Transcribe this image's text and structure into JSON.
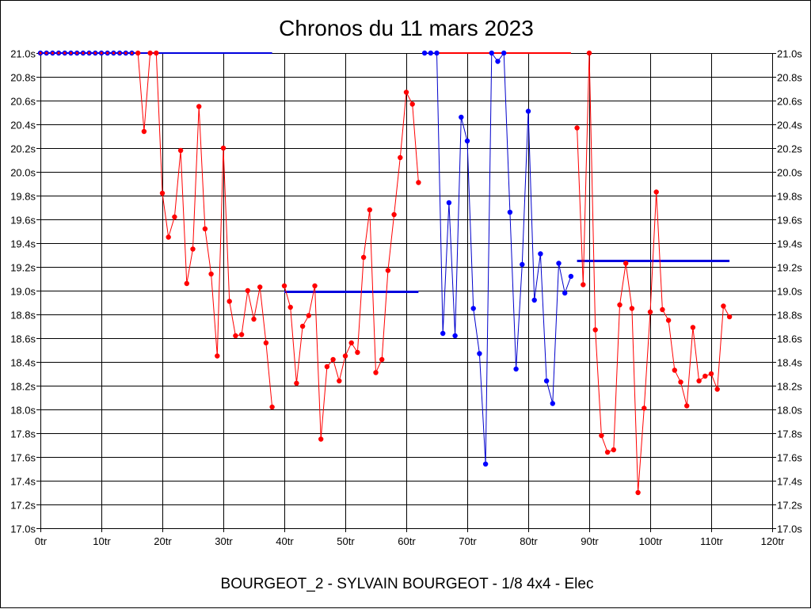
{
  "colors": {
    "background": "#ffffff",
    "grid": "#000000",
    "red_series": "#ff0000",
    "blue_series": "#0000cc",
    "blue_marker": "#0000ff",
    "blue_ref_line": "#0000dd",
    "red_ref_line": "#ff0000"
  },
  "chart_data": {
    "type": "line",
    "title": "Chronos du 11 mars 2023",
    "subtitle": "BOURGEOT_2 - SYLVAIN BOURGEOT - 1/8 4x4 - Elec",
    "xlabel": "",
    "ylabel": "",
    "xlim": [
      0,
      120
    ],
    "ylim": [
      17.0,
      21.0
    ],
    "grid": true,
    "legend": "none",
    "x_ticks": [
      0,
      10,
      20,
      30,
      40,
      50,
      60,
      70,
      80,
      90,
      100,
      110,
      120
    ],
    "x_tick_labels": [
      "0tr",
      "10tr",
      "20tr",
      "30tr",
      "40tr",
      "50tr",
      "60tr",
      "70tr",
      "80tr",
      "90tr",
      "100tr",
      "110tr",
      "120tr"
    ],
    "y_ticks": [
      17.0,
      17.2,
      17.4,
      17.6,
      17.8,
      18.0,
      18.2,
      18.4,
      18.6,
      18.8,
      19.0,
      19.2,
      19.4,
      19.6,
      19.8,
      20.0,
      20.2,
      20.4,
      20.6,
      20.8,
      21.0
    ],
    "y_tick_labels": [
      "17.0s",
      "17.2s",
      "17.4s",
      "17.6s",
      "17.8s",
      "18.0s",
      "18.2s",
      "18.4s",
      "18.6s",
      "18.8s",
      "19.0s",
      "19.2s",
      "19.4s",
      "19.6s",
      "19.8s",
      "20.0s",
      "20.2s",
      "20.4s",
      "20.6s",
      "20.8s",
      "21.0s"
    ],
    "series": [
      {
        "color": "#ff0000",
        "marker_color": "#ff0000",
        "x": [
          16,
          17,
          18,
          19,
          20,
          21,
          22,
          23,
          24,
          25,
          26,
          27,
          28,
          29,
          30,
          31,
          32,
          33,
          34,
          35,
          36,
          37,
          38
        ],
        "values": [
          21.0,
          20.34,
          21.0,
          21.0,
          19.82,
          19.45,
          19.62,
          20.18,
          19.06,
          19.35,
          20.55,
          19.52,
          19.14,
          18.45,
          20.2,
          18.91,
          18.62,
          18.63,
          19.0,
          18.76,
          19.03,
          18.56,
          18.02
        ]
      },
      {
        "color": "#0000cc",
        "marker_color": "#0000ff",
        "x": [
          0,
          1,
          2,
          3,
          4,
          5,
          6,
          7,
          8,
          9,
          10,
          11,
          12,
          13,
          14,
          15
        ],
        "values": [
          21.0,
          21.0,
          21.0,
          21.0,
          21.0,
          21.0,
          21.0,
          21.0,
          21.0,
          21.0,
          21.0,
          21.0,
          21.0,
          21.0,
          21.0,
          21.0
        ]
      },
      {
        "color": "#ff0000",
        "marker_color": "#ff0000",
        "x": [
          40,
          41,
          42,
          43,
          44,
          45,
          46,
          47,
          48,
          49,
          50,
          51,
          52,
          53,
          54,
          55,
          56,
          57,
          58,
          59,
          60,
          61,
          62
        ],
        "values": [
          19.04,
          18.86,
          18.22,
          18.7,
          18.79,
          19.04,
          17.75,
          18.36,
          18.42,
          18.24,
          18.45,
          18.56,
          18.48,
          19.28,
          19.68,
          18.31,
          18.42,
          19.17,
          19.64,
          20.12,
          20.67,
          20.57,
          19.91
        ]
      },
      {
        "color": "#0000cc",
        "marker_color": "#0000ff",
        "x": [
          63,
          64,
          65,
          66,
          67,
          68,
          69,
          70,
          71,
          72,
          73,
          74,
          75,
          76,
          77,
          78,
          79,
          80,
          81,
          82,
          83,
          84,
          85,
          86,
          87
        ],
        "values": [
          21.0,
          21.0,
          21.0,
          18.64,
          19.74,
          18.62,
          20.46,
          20.26,
          18.85,
          18.47,
          17.54,
          21.0,
          20.93,
          21.0,
          19.66,
          18.34,
          19.22,
          20.51,
          18.92,
          19.31,
          18.24,
          18.05,
          19.23,
          18.98,
          19.12
        ]
      },
      {
        "color": "#ff0000",
        "marker_color": "#ff0000",
        "x": [
          88,
          89,
          90,
          91,
          92,
          93,
          94,
          95,
          96,
          97,
          98,
          99,
          100,
          101,
          102,
          103,
          104,
          105,
          106,
          107,
          108,
          109,
          110,
          111,
          112,
          113
        ],
        "values": [
          20.37,
          19.05,
          21.0,
          18.67,
          17.78,
          17.64,
          17.66,
          18.88,
          19.23,
          18.85,
          17.3,
          18.01,
          18.82,
          19.83,
          18.84,
          18.75,
          18.33,
          18.23,
          18.03,
          18.69,
          18.24,
          18.28,
          18.3,
          18.17,
          18.87,
          18.78
        ]
      }
    ],
    "reference_lines": [
      {
        "color": "#0000dd",
        "x_start": 0,
        "x_end": 38,
        "value": 21.0,
        "width": 2
      },
      {
        "color": "#0000dd",
        "x_start": 40,
        "x_end": 62,
        "value": 18.99,
        "width": 3
      },
      {
        "color": "#ff0000",
        "x_start": 65,
        "x_end": 87,
        "value": 21.0,
        "width": 2
      },
      {
        "color": "#0000dd",
        "x_start": 88,
        "x_end": 113,
        "value": 19.25,
        "width": 3
      }
    ]
  }
}
